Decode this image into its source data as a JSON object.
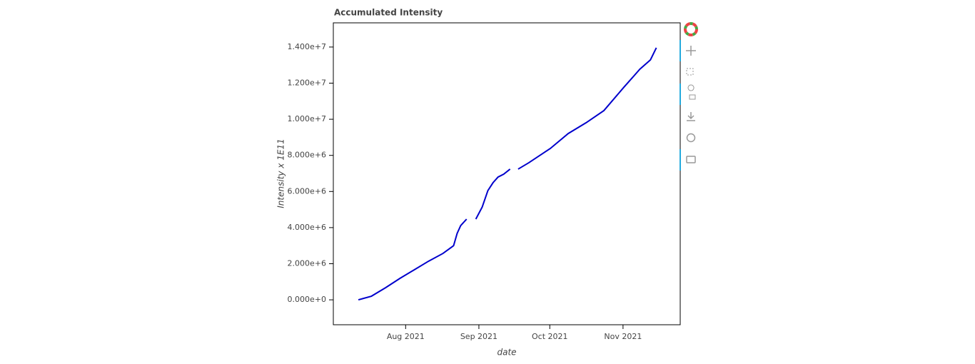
{
  "chart_data": {
    "type": "line",
    "title": "Accumulated Intensity",
    "x_label": "date",
    "y_label": "Intensity x 1E11",
    "x": [
      193,
      198.5,
      204.5,
      210.6,
      216.6,
      222.7,
      228.8,
      233.3,
      234.8,
      236.3,
      238.8,
      240.5,
      242.7,
      245.4,
      247.8,
      250,
      252.1,
      254.5,
      257.2,
      259,
      260.6,
      265.1,
      269.7,
      274.2,
      281.8,
      289.4,
      296.9,
      305.4,
      312.1,
      316.6,
      319.1
    ],
    "series": [
      {
        "name": "Intensity",
        "color": "#0000cc",
        "values": [
          0,
          200000,
          670000,
          1190000,
          1660000,
          2140000,
          2570000,
          3000000,
          3680000,
          4110000,
          4470000,
          null,
          4470000,
          5140000,
          6050000,
          6490000,
          6800000,
          6960000,
          7240000,
          null,
          7240000,
          7590000,
          7990000,
          8380000,
          9210000,
          9810000,
          10480000,
          11780000,
          12770000,
          13290000,
          13960000
        ]
      }
    ],
    "xlim": [
      182.4,
      329.2
    ],
    "xticks": [
      {
        "value": 213,
        "label": "Aug 2021"
      },
      {
        "value": 244,
        "label": "Sep 2021"
      },
      {
        "value": 274,
        "label": "Oct 2021"
      },
      {
        "value": 305,
        "label": "Nov 2021"
      }
    ],
    "ylim": [
      -1380000,
      15340000
    ],
    "yticks": [
      {
        "value": 0,
        "label": "0.000e+0"
      },
      {
        "value": 2000000,
        "label": "2.000e+6"
      },
      {
        "value": 4000000,
        "label": "4.000e+6"
      },
      {
        "value": 6000000,
        "label": "6.000e+6"
      },
      {
        "value": 8000000,
        "label": "8.000e+6"
      },
      {
        "value": 10000000,
        "label": "1.000e+7"
      },
      {
        "value": 12000000,
        "label": "1.200e+7"
      },
      {
        "value": 14000000,
        "label": "1.400e+7"
      }
    ],
    "grid": false
  }
}
